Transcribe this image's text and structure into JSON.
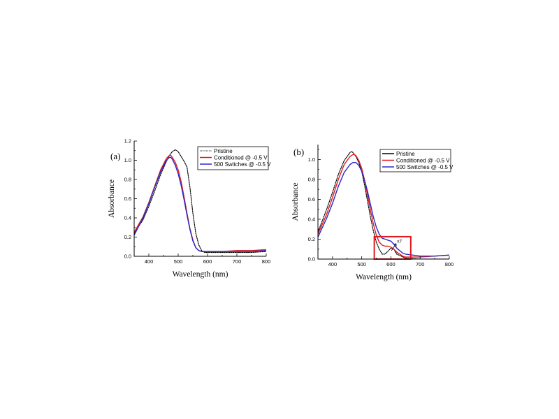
{
  "chart_data": [
    {
      "type": "line",
      "panel_label": "(a)",
      "xlabel": "Wavelength (nm)",
      "ylabel": "Absorbance",
      "xlim": [
        350,
        800
      ],
      "ylim": [
        0,
        1.2
      ],
      "xticks": [
        400,
        500,
        600,
        700,
        800
      ],
      "yticks": [
        0.0,
        0.2,
        0.4,
        0.6,
        0.8,
        1.0,
        1.2
      ],
      "grid": false,
      "legend_position": "top-right",
      "series": [
        {
          "name": "Pristine",
          "color": "#000000",
          "style": "dotted",
          "x": [
            350,
            380,
            400,
            420,
            440,
            460,
            470,
            480,
            490,
            500,
            510,
            520,
            530,
            540,
            550,
            560,
            570,
            580,
            590,
            600,
            650,
            700,
            750,
            800
          ],
          "y": [
            0.24,
            0.38,
            0.52,
            0.68,
            0.85,
            0.99,
            1.05,
            1.09,
            1.11,
            1.09,
            1.04,
            0.99,
            0.93,
            0.72,
            0.45,
            0.24,
            0.12,
            0.06,
            0.04,
            0.04,
            0.04,
            0.04,
            0.04,
            0.05
          ]
        },
        {
          "name": "Conditioned @ -0.5 V",
          "color": "#e41a1c",
          "style": "solid",
          "x": [
            350,
            380,
            400,
            420,
            440,
            460,
            470,
            475,
            480,
            490,
            500,
            510,
            520,
            530,
            540,
            550,
            560,
            570,
            580,
            600,
            650,
            700,
            750,
            800
          ],
          "y": [
            0.25,
            0.41,
            0.56,
            0.73,
            0.9,
            1.02,
            1.05,
            1.05,
            1.03,
            0.98,
            0.9,
            0.78,
            0.62,
            0.45,
            0.29,
            0.17,
            0.09,
            0.06,
            0.05,
            0.05,
            0.05,
            0.06,
            0.06,
            0.07
          ]
        },
        {
          "name": "500 Switches @ -0.5 V",
          "color": "#2b28c8",
          "style": "solid",
          "x": [
            350,
            380,
            400,
            420,
            440,
            460,
            470,
            475,
            480,
            490,
            500,
            510,
            520,
            530,
            540,
            550,
            560,
            570,
            580,
            600,
            650,
            700,
            750,
            800
          ],
          "y": [
            0.22,
            0.4,
            0.55,
            0.72,
            0.88,
            1.0,
            1.03,
            1.03,
            1.01,
            0.95,
            0.86,
            0.74,
            0.59,
            0.43,
            0.28,
            0.16,
            0.09,
            0.06,
            0.05,
            0.05,
            0.05,
            0.05,
            0.05,
            0.06
          ]
        }
      ]
    },
    {
      "type": "line",
      "panel_label": "(b)",
      "xlabel": "Wavelength (nm)",
      "ylabel": "Absorbance",
      "xlim": [
        350,
        800
      ],
      "ylim": [
        0,
        1.15
      ],
      "xticks": [
        400,
        500,
        600,
        700,
        800
      ],
      "yticks": [
        0.0,
        0.2,
        0.4,
        0.6,
        0.8,
        1.0
      ],
      "grid": false,
      "legend_position": "top-right",
      "annotation_arrow_label": "x7",
      "highlight_box_x": [
        543,
        668
      ],
      "highlight_box_y": [
        0,
        0.225
      ],
      "series": [
        {
          "name": "Pristine",
          "color": "#000000",
          "style": "dotted",
          "x": [
            350,
            380,
            400,
            420,
            440,
            460,
            465,
            470,
            480,
            490,
            500,
            510,
            520,
            530,
            540,
            550,
            560,
            570,
            580,
            590,
            600,
            610,
            620,
            650,
            700,
            750,
            800
          ],
          "y": [
            0.27,
            0.5,
            0.67,
            0.85,
            0.99,
            1.07,
            1.08,
            1.07,
            1.03,
            0.97,
            0.88,
            0.74,
            0.58,
            0.42,
            0.28,
            0.17,
            0.1,
            0.05,
            0.05,
            0.08,
            0.11,
            0.1,
            0.05,
            0.01,
            0.0,
            0.0,
            0.0
          ]
        },
        {
          "name": "Conditioned @ -0.5 V",
          "color": "#e41a1c",
          "style": "solid",
          "x": [
            350,
            380,
            400,
            420,
            440,
            460,
            470,
            475,
            480,
            490,
            500,
            510,
            520,
            530,
            540,
            550,
            560,
            570,
            580,
            590,
            600,
            610,
            620,
            640,
            650,
            700,
            750,
            800
          ],
          "y": [
            0.25,
            0.45,
            0.62,
            0.8,
            0.95,
            1.03,
            1.05,
            1.05,
            1.04,
            0.99,
            0.91,
            0.79,
            0.64,
            0.49,
            0.35,
            0.24,
            0.17,
            0.14,
            0.13,
            0.13,
            0.12,
            0.1,
            0.07,
            0.03,
            0.02,
            0.02,
            0.03,
            0.04
          ]
        },
        {
          "name": "500 Switches @ -0.5 V",
          "color": "#2b28c8",
          "style": "solid",
          "x": [
            350,
            380,
            400,
            420,
            440,
            460,
            470,
            480,
            490,
            500,
            510,
            520,
            530,
            540,
            550,
            560,
            570,
            580,
            590,
            600,
            610,
            620,
            640,
            650,
            700,
            750,
            800
          ],
          "y": [
            0.22,
            0.41,
            0.56,
            0.73,
            0.87,
            0.95,
            0.97,
            0.97,
            0.94,
            0.88,
            0.79,
            0.68,
            0.55,
            0.42,
            0.32,
            0.25,
            0.21,
            0.2,
            0.19,
            0.18,
            0.15,
            0.11,
            0.06,
            0.05,
            0.03,
            0.03,
            0.04
          ]
        }
      ]
    }
  ]
}
